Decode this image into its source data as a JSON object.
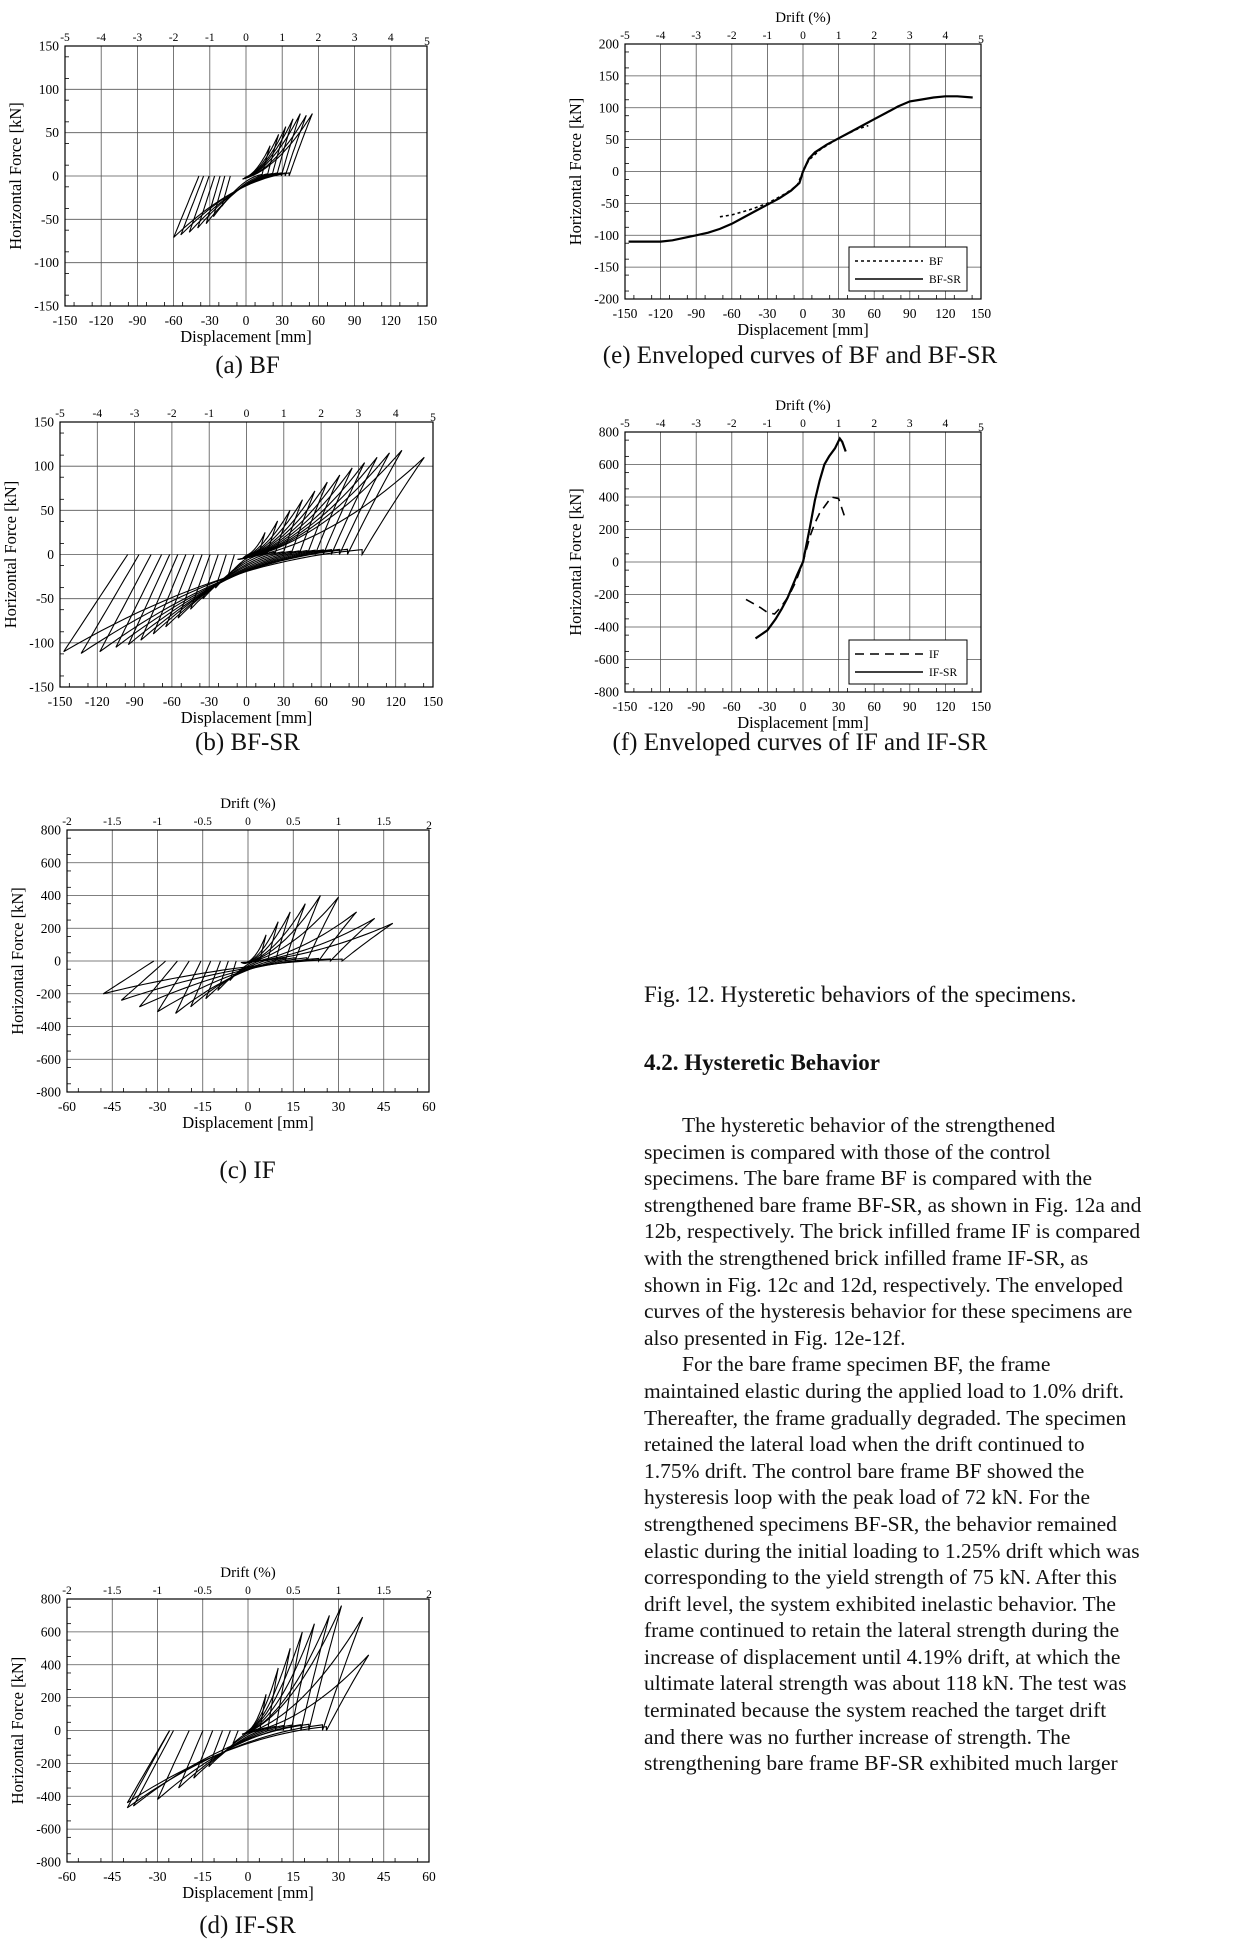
{
  "chart_data": [
    {
      "id": "a",
      "type": "line",
      "caption": "(a) BF",
      "xlabel": "Displacement [mm]",
      "ylabel": "Horizontal Force [kN]",
      "toplabel": "",
      "xlim": [
        -150,
        150
      ],
      "ylim": [
        -150,
        150
      ],
      "xticks": [
        "-150",
        "-120",
        "-90",
        "-60",
        "-30",
        "0",
        "30",
        "60",
        "90",
        "120",
        "150"
      ],
      "yticks": [
        "150",
        "100",
        "50",
        "0",
        "-50",
        "-100",
        "-150"
      ],
      "topticks": [
        "-5",
        "-4",
        "-3",
        "-2",
        "-1",
        "0",
        "1",
        "2",
        "3",
        "4",
        "5"
      ],
      "loops": [
        {
          "dpos": 20,
          "fpos": 35,
          "dneg": -20,
          "fneg": -35
        },
        {
          "dpos": 27,
          "fpos": 48,
          "dneg": -27,
          "fneg": -47
        },
        {
          "dpos": 33,
          "fpos": 57,
          "dneg": -33,
          "fneg": -55
        },
        {
          "dpos": 39,
          "fpos": 66,
          "dneg": -40,
          "fneg": -60
        },
        {
          "dpos": 45,
          "fpos": 72,
          "dneg": -47,
          "fneg": -65
        },
        {
          "dpos": 50,
          "fpos": 70,
          "dneg": -54,
          "fneg": -68
        },
        {
          "dpos": 55,
          "fpos": 72,
          "dneg": -60,
          "fneg": -71
        }
      ]
    },
    {
      "id": "b",
      "type": "line",
      "caption": "(b) BF-SR",
      "xlabel": "Displacement [mm]",
      "ylabel": "Horizontal Force [kN]",
      "toplabel": "",
      "xlim": [
        -150,
        150
      ],
      "ylim": [
        -150,
        150
      ],
      "xticks": [
        "-150",
        "-120",
        "-90",
        "-60",
        "-30",
        "0",
        "30",
        "60",
        "90",
        "120",
        "150"
      ],
      "yticks": [
        "150",
        "100",
        "50",
        "0",
        "-50",
        "-100",
        "-150"
      ],
      "topticks": [
        "-5",
        "-4",
        "-3",
        "-2",
        "-1",
        "0",
        "1",
        "2",
        "3",
        "4",
        "5"
      ],
      "loops": [
        {
          "dpos": 15,
          "fpos": 25,
          "dneg": -15,
          "fneg": -25
        },
        {
          "dpos": 25,
          "fpos": 38,
          "dneg": -25,
          "fneg": -38
        },
        {
          "dpos": 35,
          "fpos": 50,
          "dneg": -35,
          "fneg": -50
        },
        {
          "dpos": 45,
          "fpos": 62,
          "dneg": -45,
          "fneg": -62
        },
        {
          "dpos": 55,
          "fpos": 72,
          "dneg": -55,
          "fneg": -72
        },
        {
          "dpos": 65,
          "fpos": 82,
          "dneg": -65,
          "fneg": -82
        },
        {
          "dpos": 75,
          "fpos": 90,
          "dneg": -75,
          "fneg": -90
        },
        {
          "dpos": 85,
          "fpos": 98,
          "dneg": -85,
          "fneg": -97
        },
        {
          "dpos": 95,
          "fpos": 104,
          "dneg": -95,
          "fneg": -102
        },
        {
          "dpos": 105,
          "fpos": 110,
          "dneg": -105,
          "fneg": -105
        },
        {
          "dpos": 115,
          "fpos": 115,
          "dneg": -118,
          "fneg": -110
        },
        {
          "dpos": 125,
          "fpos": 118,
          "dneg": -133,
          "fneg": -112
        },
        {
          "dpos": 143,
          "fpos": 110,
          "dneg": -147,
          "fneg": -110
        }
      ]
    },
    {
      "id": "c",
      "type": "line",
      "caption": "(c) IF",
      "xlabel": "Displacement [mm]",
      "ylabel": "Horizontal Force [kN]",
      "toplabel": "Drift (%)",
      "xlim": [
        -60,
        60
      ],
      "ylim": [
        -800,
        800
      ],
      "xticks": [
        "-60",
        "-45",
        "-30",
        "-15",
        "0",
        "15",
        "30",
        "45",
        "60"
      ],
      "yticks": [
        "800",
        "600",
        "400",
        "200",
        "0",
        "-200",
        "-400",
        "-600",
        "-800"
      ],
      "topticks": [
        "-2",
        "-1.5",
        "-1",
        "-0.5",
        "0",
        "0.5",
        "1",
        "1.5",
        "2"
      ],
      "loops": [
        {
          "dpos": 6,
          "fpos": 160,
          "dneg": -6,
          "fneg": -120
        },
        {
          "dpos": 10,
          "fpos": 240,
          "dneg": -10,
          "fneg": -180
        },
        {
          "dpos": 14,
          "fpos": 300,
          "dneg": -14,
          "fneg": -230
        },
        {
          "dpos": 19,
          "fpos": 350,
          "dneg": -19,
          "fneg": -280
        },
        {
          "dpos": 24,
          "fpos": 400,
          "dneg": -24,
          "fneg": -320
        },
        {
          "dpos": 30,
          "fpos": 390,
          "dneg": -30,
          "fneg": -310
        },
        {
          "dpos": 36,
          "fpos": 300,
          "dneg": -36,
          "fneg": -280
        },
        {
          "dpos": 42,
          "fpos": 260,
          "dneg": -42,
          "fneg": -240
        },
        {
          "dpos": 48,
          "fpos": 230,
          "dneg": -48,
          "fneg": -200
        }
      ]
    },
    {
      "id": "d",
      "type": "line",
      "caption": "(d) IF-SR",
      "xlabel": "Displacement [mm]",
      "ylabel": "Horizontal Force [kN]",
      "toplabel": "Drift (%)",
      "xlim": [
        -60,
        60
      ],
      "ylim": [
        -800,
        800
      ],
      "xticks": [
        "-60",
        "-45",
        "-30",
        "-15",
        "0",
        "15",
        "30",
        "45",
        "60"
      ],
      "yticks": [
        "800",
        "600",
        "400",
        "200",
        "0",
        "-200",
        "-400",
        "-600",
        "-800"
      ],
      "topticks": [
        "-2",
        "-1.5",
        "-1",
        "-0.5",
        "0",
        "0.5",
        "1",
        "1.5",
        "2"
      ],
      "loops": [
        {
          "dpos": 6,
          "fpos": 220,
          "dneg": -5,
          "fneg": -80
        },
        {
          "dpos": 10,
          "fpos": 380,
          "dneg": -9,
          "fneg": -150
        },
        {
          "dpos": 14,
          "fpos": 500,
          "dneg": -13,
          "fneg": -220
        },
        {
          "dpos": 18,
          "fpos": 600,
          "dneg": -18,
          "fneg": -290
        },
        {
          "dpos": 22,
          "fpos": 650,
          "dneg": -23,
          "fneg": -350
        },
        {
          "dpos": 27,
          "fpos": 700,
          "dneg": -30,
          "fneg": -420
        },
        {
          "dpos": 31,
          "fpos": 760,
          "dneg": -38,
          "fneg": -460
        },
        {
          "dpos": 38,
          "fpos": 690,
          "dneg": -40,
          "fneg": -470
        },
        {
          "dpos": 40,
          "fpos": 460,
          "dneg": -40,
          "fneg": -440
        }
      ]
    },
    {
      "id": "e",
      "type": "line",
      "caption": "(e) Enveloped curves of BF and BF-SR",
      "xlabel": "Displacement [mm]",
      "ylabel": "Horizontal Force [kN]",
      "toplabel": "Drift (%)",
      "xlim": [
        -150,
        150
      ],
      "ylim": [
        -200,
        200
      ],
      "xticks": [
        "-150",
        "-120",
        "-90",
        "-60",
        "-30",
        "0",
        "30",
        "60",
        "90",
        "120",
        "150"
      ],
      "yticks": [
        "200",
        "150",
        "100",
        "50",
        "0",
        "-50",
        "-100",
        "-150",
        "-200"
      ],
      "topticks": [
        "-5",
        "-4",
        "-3",
        "-2",
        "-1",
        "0",
        "1",
        "2",
        "3",
        "4",
        "5"
      ],
      "series": [
        {
          "name": "BF",
          "dash": "dot",
          "x": [
            -70,
            -60,
            -45,
            -30,
            -15,
            -5,
            0,
            5,
            15,
            30,
            45,
            55
          ],
          "y": [
            -71,
            -68,
            -60,
            -50,
            -35,
            -22,
            0,
            18,
            35,
            52,
            66,
            72
          ]
        },
        {
          "name": "BF-SR",
          "dash": "solid",
          "x": [
            -147,
            -120,
            -110,
            -100,
            -90,
            -80,
            -70,
            -60,
            -50,
            -40,
            -30,
            -20,
            -10,
            -3,
            0,
            5,
            10,
            20,
            30,
            40,
            50,
            60,
            70,
            80,
            90,
            100,
            110,
            120,
            130,
            143
          ],
          "y": [
            -110,
            -110,
            -108,
            -104,
            -100,
            -96,
            -90,
            -82,
            -72,
            -62,
            -52,
            -42,
            -30,
            -18,
            0,
            20,
            30,
            42,
            52,
            62,
            72,
            82,
            92,
            102,
            110,
            113,
            116,
            118,
            118,
            116
          ]
        }
      ]
    },
    {
      "id": "f",
      "type": "line",
      "caption": "(f) Enveloped curves of IF and IF-SR",
      "xlabel": "Displacement [mm]",
      "ylabel": "Horizontal Force [kN]",
      "toplabel": "Drift (%)",
      "xlim": [
        -150,
        150
      ],
      "ylim": [
        -800,
        800
      ],
      "xticks": [
        "-150",
        "-120",
        "-90",
        "-60",
        "-30",
        "0",
        "30",
        "60",
        "90",
        "120",
        "150"
      ],
      "yticks": [
        "800",
        "600",
        "400",
        "200",
        "0",
        "-200",
        "-400",
        "-600",
        "-800"
      ],
      "topticks": [
        "-5",
        "-4",
        "-3",
        "-2",
        "-1",
        "0",
        "1",
        "2",
        "3",
        "4",
        "5"
      ],
      "series": [
        {
          "name": "IF",
          "dash": "dash",
          "x": [
            -48,
            -36,
            -30,
            -24,
            -19,
            -14,
            -10,
            -6,
            0,
            6,
            10,
            14,
            19,
            24,
            30,
            36
          ],
          "y": [
            -230,
            -280,
            -310,
            -320,
            -280,
            -230,
            -180,
            -120,
            0,
            160,
            240,
            300,
            350,
            400,
            390,
            260
          ]
        },
        {
          "name": "IF-SR",
          "dash": "solid",
          "x": [
            -40,
            -38,
            -30,
            -23,
            -18,
            -13,
            -9,
            -5,
            0,
            6,
            10,
            14,
            18,
            22,
            27,
            31,
            33,
            36
          ],
          "y": [
            -470,
            -460,
            -420,
            -350,
            -290,
            -220,
            -150,
            -80,
            0,
            220,
            380,
            500,
            600,
            650,
            700,
            760,
            740,
            680
          ]
        }
      ]
    }
  ],
  "figure_caption": "Fig. 12. Hysteretic behaviors of the specimens.",
  "section_title": "4.2.  Hysteretic Behavior",
  "body": {
    "lines": [
      "The hysteretic behavior of the strengthened",
      "specimen is compared with those of the control",
      "specimens. The bare frame BF is compared with the",
      "strengthened bare frame BF-SR, as shown in Fig. 12a and",
      "12b, respectively. The brick infilled frame IF is compared",
      "with the strengthened brick infilled frame IF-SR, as",
      "shown in Fig. 12c and 12d, respectively. The enveloped",
      "curves of the hysteresis behavior for these specimens are",
      "also presented in Fig. 12e-12f.",
      "For the bare frame specimen BF, the frame",
      "maintained elastic during the applied load to 1.0% drift.",
      "Thereafter, the frame gradually degraded. The specimen",
      "retained the lateral load when the drift continued to",
      "1.75% drift. The control bare frame BF showed the",
      "hysteresis loop with the peak load of 72 kN. For the",
      "strengthened specimens BF-SR, the behavior remained",
      "elastic during the initial loading to 1.25% drift which was",
      "corresponding to the yield strength of 75 kN. After this",
      "drift level, the system exhibited inelastic behavior. The",
      "frame continued to retain the lateral strength during the",
      "increase of displacement until 4.19% drift, at which the",
      "ultimate lateral strength was about 118 kN. The test was",
      "terminated because the system reached the target drift",
      "and there was no further increase of strength. The",
      "strengthening bare frame BF-SR exhibited much larger"
    ]
  }
}
